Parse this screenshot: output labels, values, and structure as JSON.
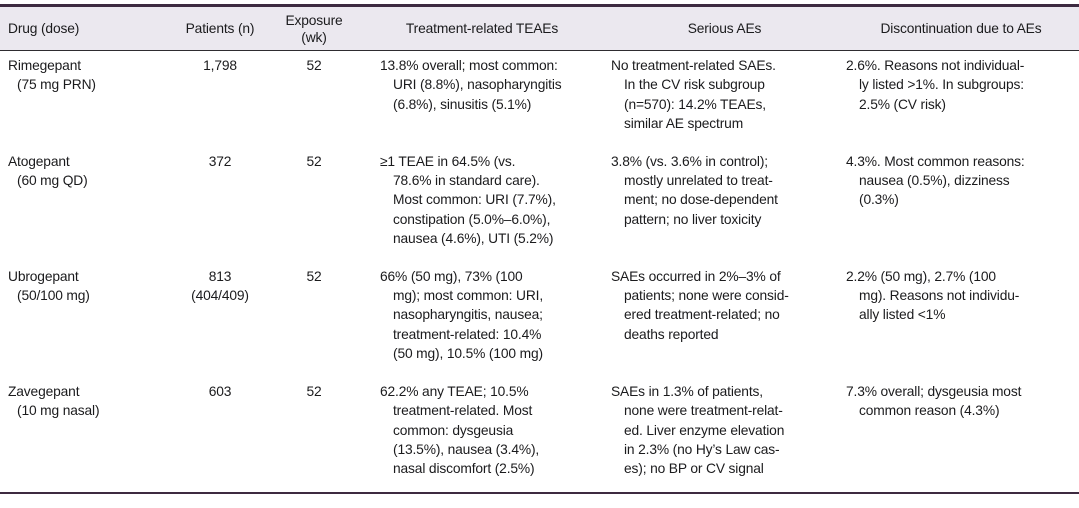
{
  "colors": {
    "accent_border": "#3d2a40",
    "header_bg": "#ebe8ef",
    "header_sep": "#2e2c30",
    "text": "#1b1b1d"
  },
  "table": {
    "headers": {
      "drug": "Drug (dose)",
      "patients": "Patients (n)",
      "exposure": "Exposure\n(wk)",
      "teaes": "Treatment-related TEAEs",
      "serious": "Serious AEs",
      "discontinuation": "Discontinuation due to AEs"
    },
    "rows": [
      {
        "drug": "Rimegepant\n(75 mg PRN)",
        "patients": "1,798",
        "exposure": "52",
        "teaes": "13.8% overall; most common:\nURI (8.8%), nasopharyngitis\n(6.8%), sinusitis (5.1%)",
        "serious": "No treatment-related SAEs.\nIn the CV risk subgroup\n(n=570): 14.2% TEAEs,\nsimilar AE spectrum",
        "discontinuation": "2.6%. Reasons not individual-\nly listed >1%. In subgroups:\n2.5% (CV risk)"
      },
      {
        "drug": "Atogepant\n(60 mg QD)",
        "patients": "372",
        "exposure": "52",
        "teaes": "≥1 TEAE in 64.5% (vs.\n78.6% in standard care).\nMost common: URI (7.7%),\nconstipation (5.0%–6.0%),\nnausea (4.6%), UTI (5.2%)",
        "serious": "3.8% (vs. 3.6% in control);\nmostly unrelated to treat-\nment; no dose-dependent\npattern; no liver toxicity",
        "discontinuation": "4.3%. Most common reasons:\nnausea (0.5%), dizziness\n(0.3%)"
      },
      {
        "drug": "Ubrogepant\n(50/100 mg)",
        "patients": "813\n(404/409)",
        "exposure": "52",
        "teaes": "66% (50 mg), 73% (100\nmg); most common: URI,\nnasopharyngitis, nausea;\ntreatment-related: 10.4%\n(50 mg), 10.5% (100 mg)",
        "serious": "SAEs occurred in 2%–3% of\npatients; none were consid-\nered treatment-related; no\ndeaths reported",
        "discontinuation": "2.2% (50 mg), 2.7% (100\nmg). Reasons not individu-\nally listed <1%"
      },
      {
        "drug": "Zavegepant\n(10 mg nasal)",
        "patients": "603",
        "exposure": "52",
        "teaes": "62.2% any TEAE; 10.5%\ntreatment-related. Most\ncommon: dysgeusia\n(13.5%), nausea (3.4%),\nnasal discomfort (2.5%)",
        "serious": "SAEs in 1.3% of patients,\nnone were treatment-relat-\ned. Liver enzyme elevation\nin 2.3% (no Hy’s Law cas-\nes); no BP or CV signal",
        "discontinuation": "7.3% overall; dysgeusia most\ncommon reason (4.3%)"
      }
    ]
  }
}
